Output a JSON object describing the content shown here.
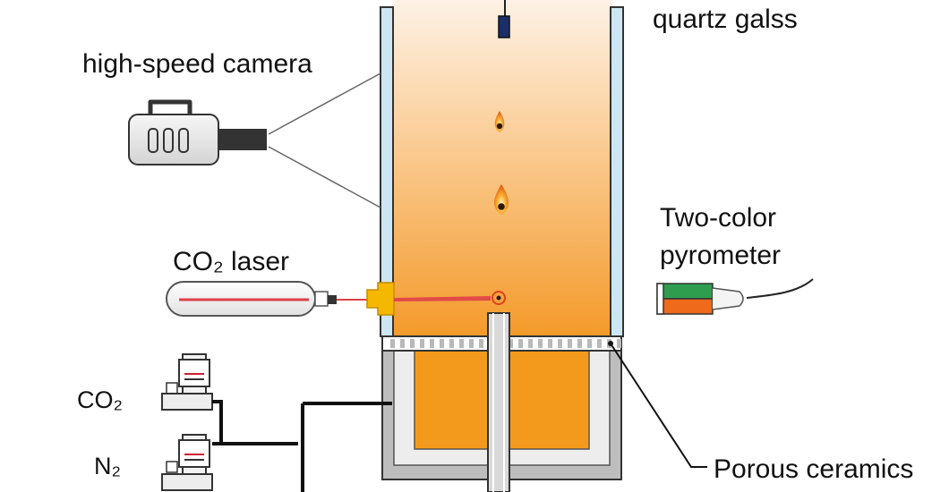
{
  "labels": {
    "quartz": "quartz galss",
    "camera": "high-speed camera",
    "laser": "CO₂  laser",
    "pyrometer_line1": "Two-color",
    "pyrometer_line2": "pyrometer",
    "co2": "CO₂",
    "n2": "N₂",
    "ceramics": "Porous ceramics"
  },
  "colors": {
    "chamber_top": "#fdf2e6",
    "chamber_bottom": "#f49a2a",
    "quartz_wall": "#cde6f3",
    "laser_beam": "#e0404a",
    "laser_head": "#f5b800",
    "pyrometer_green": "#2e9e4e",
    "pyrometer_orange": "#ef6a1a",
    "plenum_fill": "#f39a1c",
    "insulation": "#ededed",
    "outer_base": "#bdbdbd"
  }
}
